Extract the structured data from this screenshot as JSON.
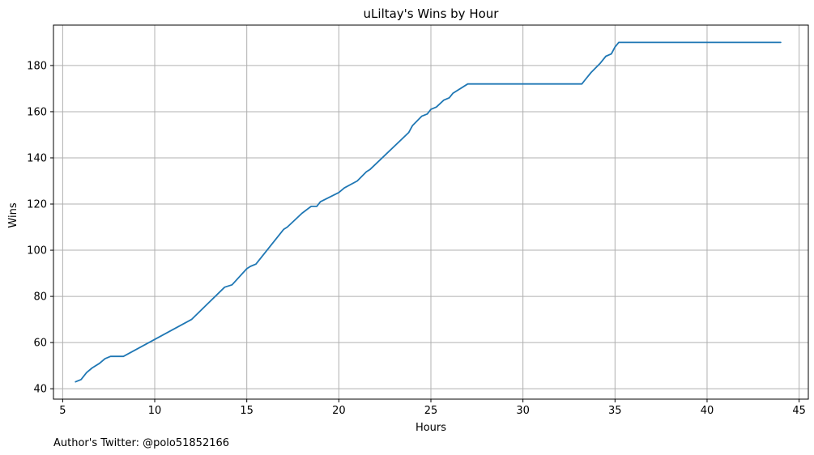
{
  "chart_data": {
    "type": "line",
    "title": "uLiltay's Wins by Hour",
    "xlabel": "Hours",
    "ylabel": "Wins",
    "xlim": [
      4.5,
      45.5
    ],
    "ylim": [
      35.5,
      197.5
    ],
    "xticks": [
      5,
      10,
      15,
      20,
      25,
      30,
      35,
      40,
      45
    ],
    "yticks": [
      40,
      60,
      80,
      100,
      120,
      140,
      160,
      180
    ],
    "grid": true,
    "series": [
      {
        "color": "#1f77b4",
        "x": [
          5.7,
          6.0,
          6.3,
          6.6,
          7.0,
          7.3,
          7.6,
          8.0,
          8.3,
          12.0,
          13.8,
          14.2,
          15.0,
          15.2,
          15.5,
          17.0,
          17.2,
          18.0,
          18.5,
          18.8,
          19.0,
          20.0,
          20.3,
          21.0,
          21.5,
          21.7,
          23.8,
          24.0,
          24.5,
          24.8,
          25.0,
          25.3,
          25.7,
          26.0,
          26.2,
          27.0,
          33.2,
          33.4,
          33.7,
          34.2,
          34.5,
          34.8,
          35.0,
          35.2,
          35.3,
          44.0
        ],
        "y": [
          43,
          44,
          47,
          49,
          51,
          53,
          54,
          54,
          54,
          70,
          84,
          85,
          92,
          93,
          94,
          109,
          110,
          116,
          119,
          119,
          121,
          125,
          127,
          130,
          134,
          135,
          151,
          154,
          158,
          159,
          161,
          162,
          165,
          166,
          168,
          172,
          172,
          174,
          177,
          181,
          184,
          185,
          188,
          190,
          190,
          190
        ]
      }
    ]
  },
  "footer": {
    "author": "Author's Twitter: @polo51852166"
  }
}
